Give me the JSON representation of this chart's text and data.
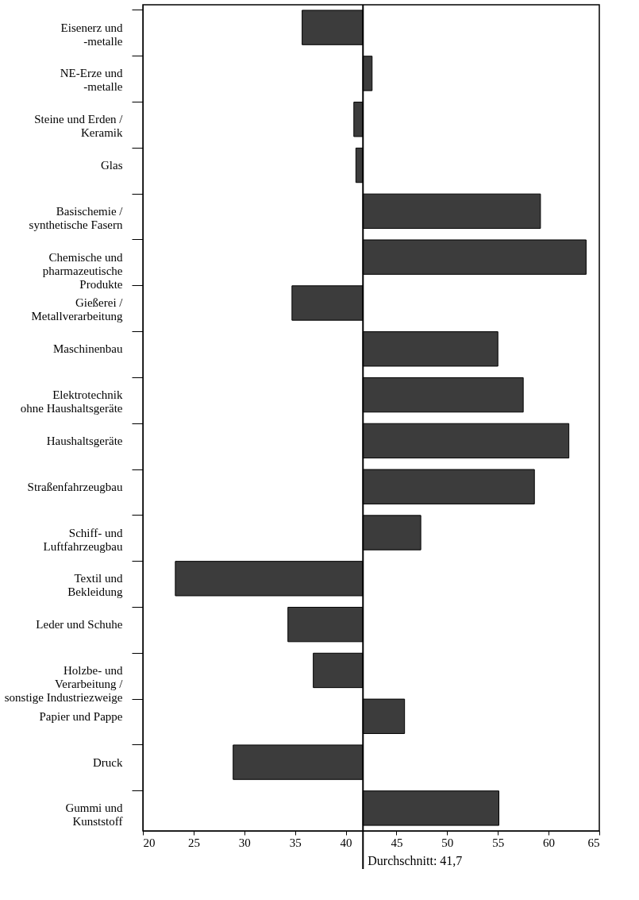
{
  "chart_data": {
    "type": "bar",
    "orientation": "horizontal",
    "categories": [
      "Eisenerz und\n-metalle",
      "NE-Erze und\n-metalle",
      "Steine und Erden /\nKeramik",
      "Glas",
      "Basischemie /\nsynthetische Fasern",
      "Chemische und\npharmazeutische\nProdukte",
      "Gießerei /\nMetallverarbeitung",
      "Maschinenbau",
      "Elektrotechnik\nohne Haushaltsgeräte",
      "Haushaltsgeräte",
      "Straßenfahrzeugbau",
      "Schiff- und\nLuftfahrzeugbau",
      "Textil und\nBekleidung",
      "Leder und Schuhe",
      "Holzbe- und\nVerarbeitung /\nsonstige Industriezweige",
      "Papier und Pappe",
      "Druck",
      "Gummi und\nKunststoff"
    ],
    "base": [
      41.7,
      41.7,
      41.7,
      41.7,
      41.7,
      41.7,
      41.7,
      41.7,
      41.7,
      41.7,
      41.7,
      41.7,
      41.7,
      41.7,
      41.7,
      41.7,
      41.7,
      41.7
    ],
    "values": [
      -6.0,
      0.9,
      -0.9,
      -0.7,
      17.5,
      22.0,
      -7.0,
      13.3,
      15.8,
      20.3,
      16.9,
      5.7,
      -18.5,
      -7.4,
      -4.9,
      4.1,
      -12.8,
      13.4
    ],
    "color": "#3c3c3c",
    "xlim": [
      20,
      65
    ],
    "xticks": [
      20,
      25,
      30,
      35,
      40,
      45,
      50,
      55,
      60,
      65
    ],
    "ref_lines": [
      {
        "axis": "x",
        "value": 41.7,
        "label": "Durchschnitt: 41,7",
        "color": "#000000"
      }
    ],
    "grid": false
  }
}
